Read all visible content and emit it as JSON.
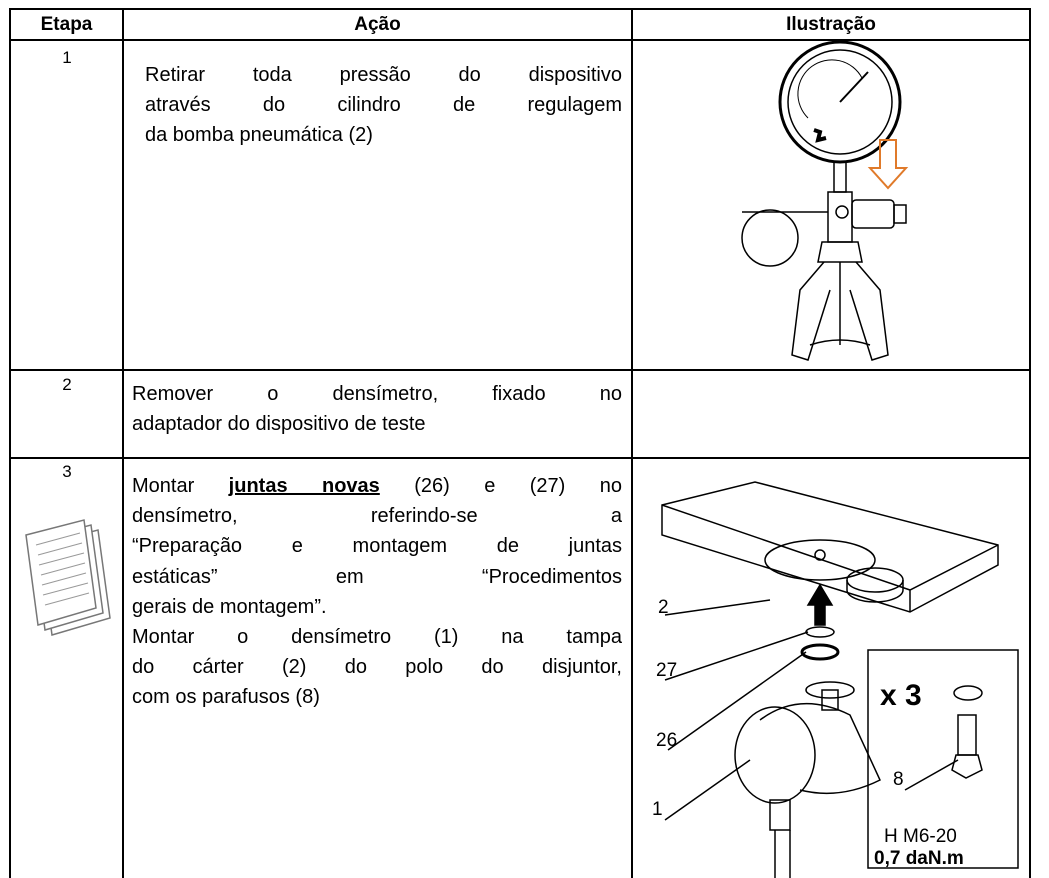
{
  "table": {
    "headers": [
      "Etapa",
      "Ação",
      "Ilustração"
    ],
    "rows": [
      {
        "step": "1",
        "action": [
          {
            "text": "Retirar toda pressão do dispositivo",
            "justify": true
          },
          {
            "text": "através do cilindro de regulagem",
            "justify": true
          },
          {
            "text": "da bomba pneumática (2)",
            "justify": false
          }
        ]
      },
      {
        "step": "2",
        "action": [
          {
            "text": "Remover o densímetro, fixado no",
            "justify": true
          },
          {
            "text": "adaptador do dispositivo de teste",
            "justify": false
          }
        ]
      },
      {
        "step": "3",
        "action": [
          {
            "parts": [
              "Montar ",
              "juntas novas",
              " (26) e (27) no"
            ],
            "bold_part": 1,
            "justify": true
          },
          {
            "text": "densímetro, referindo-se a",
            "justify": true
          },
          {
            "text": "“Preparação e montagem de juntas",
            "justify": true
          },
          {
            "text": "estáticas” em “Procedimentos",
            "justify": true
          },
          {
            "text": "gerais de montagem”.",
            "justify": false
          },
          {
            "text": "Montar o densímetro (1) na tampa",
            "justify": true
          },
          {
            "text": "do cárter (2) do polo do disjuntor,",
            "justify": true
          },
          {
            "text": "com os parafusos (8)",
            "justify": false
          }
        ],
        "illustration": {
          "callouts": [
            "2",
            "27",
            "26",
            "1",
            "8"
          ],
          "box": [
            "x 3",
            "H M6-20",
            "0,7 daN.m"
          ]
        }
      }
    ]
  }
}
